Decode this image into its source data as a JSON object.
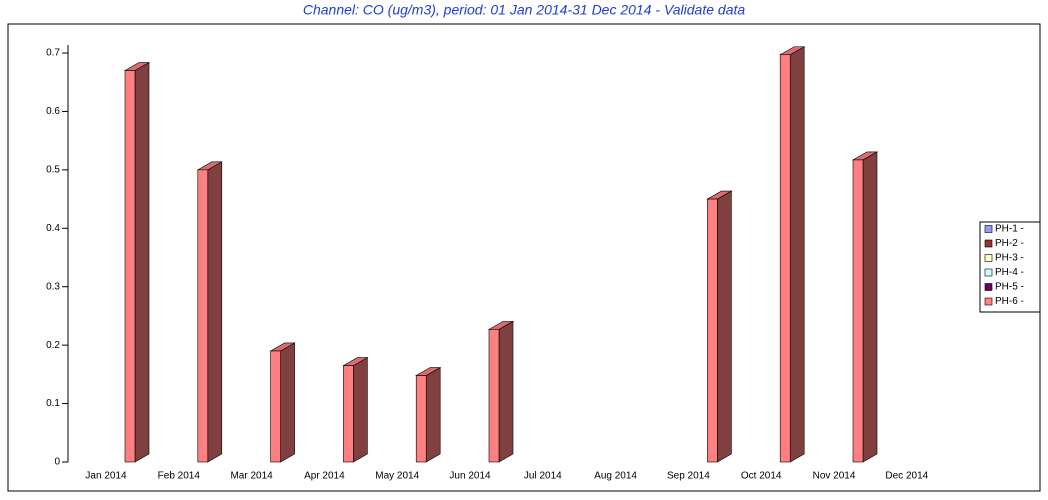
{
  "chart_data": {
    "type": "bar3d",
    "title": "Channel: CO (ug/m3), period: 01 Jan 2014-31 Dec 2014 - Validate data",
    "categories": [
      "Jan 2014",
      "Feb 2014",
      "Mar 2014",
      "Apr 2014",
      "May 2014",
      "Jun 2014",
      "Jul 2014",
      "Aug 2014",
      "Sep 2014",
      "Oct 2014",
      "Nov 2014",
      "Dec 2014"
    ],
    "series": [
      {
        "name": "PH-1 -",
        "color": "#9999ff",
        "values": [
          null,
          null,
          null,
          null,
          null,
          null,
          null,
          null,
          null,
          null,
          null,
          null
        ]
      },
      {
        "name": "PH-2 -",
        "color": "#993333",
        "values": [
          null,
          null,
          null,
          null,
          null,
          null,
          null,
          null,
          null,
          null,
          null,
          null
        ]
      },
      {
        "name": "PH-3 -",
        "color": "#ffffcc",
        "values": [
          null,
          null,
          null,
          null,
          null,
          null,
          null,
          null,
          null,
          null,
          null,
          null
        ]
      },
      {
        "name": "PH-4 -",
        "color": "#ccffff",
        "values": [
          null,
          null,
          null,
          null,
          null,
          null,
          null,
          null,
          null,
          null,
          null,
          null
        ]
      },
      {
        "name": "PH-5 -",
        "color": "#660066",
        "values": [
          null,
          null,
          null,
          null,
          null,
          null,
          null,
          null,
          null,
          null,
          null,
          null
        ]
      },
      {
        "name": "PH-6 -",
        "color": "#ff8080",
        "values": [
          0.67,
          0.5,
          0.19,
          0.165,
          0.148,
          0.227,
          null,
          null,
          0.45,
          0.697,
          0.517,
          null
        ]
      }
    ],
    "ylim": [
      0,
      0.7
    ],
    "yticks": [
      0,
      0.1,
      0.2,
      0.3,
      0.4,
      0.5,
      0.6,
      0.7
    ],
    "legend": "right"
  }
}
